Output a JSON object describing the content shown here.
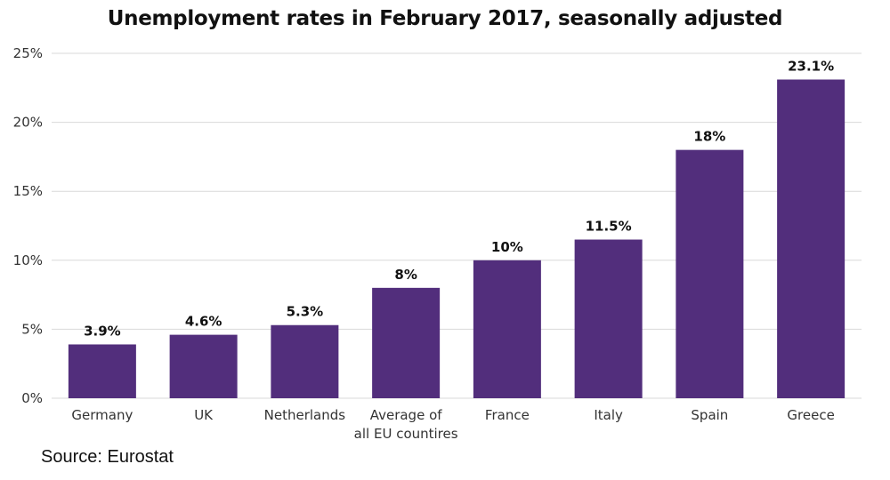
{
  "chart_data": {
    "type": "bar",
    "title": "Unemployment rates in February 2017, seasonally adjusted",
    "categories": [
      [
        "Germany"
      ],
      [
        "UK"
      ],
      [
        "Netherlands"
      ],
      [
        "Average of",
        "all EU countires"
      ],
      [
        "France"
      ],
      [
        "Italy"
      ],
      [
        "Spain"
      ],
      [
        "Greece"
      ]
    ],
    "values": [
      3.9,
      4.6,
      5.3,
      8,
      10,
      11.5,
      18,
      23.1
    ],
    "data_labels": [
      "3.9%",
      "4.6%",
      "5.3%",
      "8%",
      "10%",
      "11.5%",
      "18%",
      "23.1%"
    ],
    "yticks": [
      0,
      5,
      10,
      15,
      20,
      25
    ],
    "ytick_labels": [
      "0%",
      "5%",
      "10%",
      "15%",
      "20%",
      "25%"
    ],
    "ylim": [
      0,
      25
    ],
    "xlabel": "",
    "ylabel": "",
    "grid": true,
    "bar_color": "#522e7c",
    "grid_color": "#d9d9d9"
  },
  "source": "Source: Eurostat"
}
